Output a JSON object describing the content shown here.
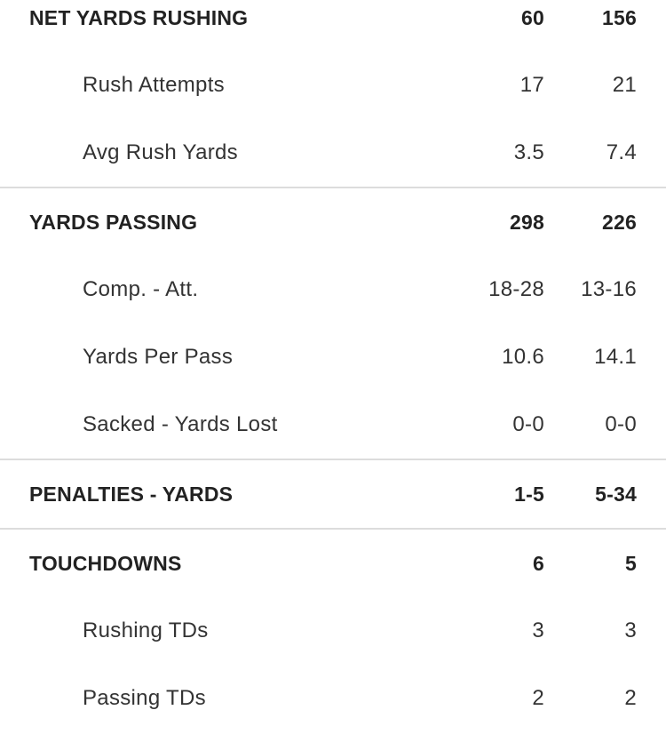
{
  "groups": [
    {
      "rows": [
        {
          "label": "NET YARDS RUSHING",
          "team1": "60",
          "team2": "156",
          "main": true
        },
        {
          "label": "Rush Attempts",
          "team1": "17",
          "team2": "21",
          "main": false
        },
        {
          "label": "Avg Rush Yards",
          "team1": "3.5",
          "team2": "7.4",
          "main": false
        }
      ]
    },
    {
      "rows": [
        {
          "label": "YARDS PASSING",
          "team1": "298",
          "team2": "226",
          "main": true
        },
        {
          "label": "Comp. - Att.",
          "team1": "18-28",
          "team2": "13-16",
          "main": false
        },
        {
          "label": "Yards Per Pass",
          "team1": "10.6",
          "team2": "14.1",
          "main": false
        },
        {
          "label": "Sacked - Yards Lost",
          "team1": "0-0",
          "team2": "0-0",
          "main": false
        }
      ]
    },
    {
      "rows": [
        {
          "label": "PENALTIES - YARDS",
          "team1": "1-5",
          "team2": "5-34",
          "main": true
        }
      ]
    },
    {
      "rows": [
        {
          "label": "TOUCHDOWNS",
          "team1": "6",
          "team2": "5",
          "main": true
        },
        {
          "label": "Rushing TDs",
          "team1": "3",
          "team2": "3",
          "main": false
        },
        {
          "label": "Passing TDs",
          "team1": "2",
          "team2": "2",
          "main": false
        }
      ]
    }
  ]
}
